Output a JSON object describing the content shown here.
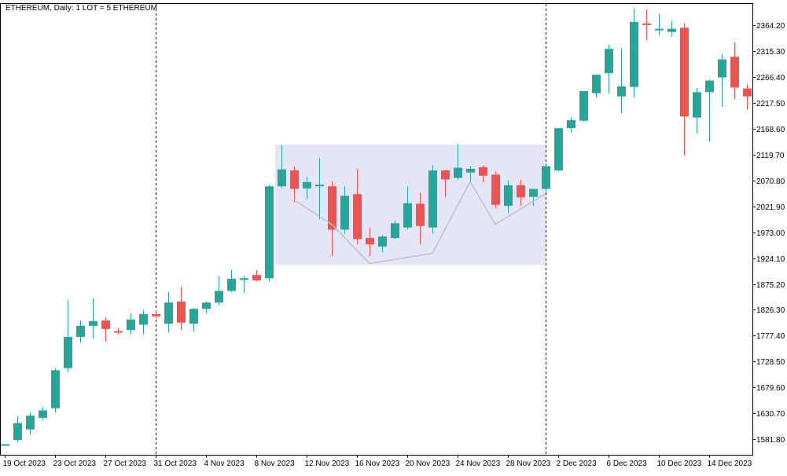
{
  "chart_data": {
    "type": "candlestick",
    "title": "ETHEREUM, Daily:  1 LOT = 5 ETHEREUM",
    "ylim": [
      1552,
      2405
    ],
    "y_ticks": [
      1581.8,
      1630.7,
      1679.6,
      1728.5,
      1777.4,
      1826.3,
      1875.2,
      1924.1,
      1973.0,
      2021.9,
      2070.8,
      2119.7,
      2168.6,
      2217.5,
      2266.4,
      2315.3,
      2364.2
    ],
    "x_tick_labels": [
      {
        "index": 0,
        "label": "19 Oct 2023"
      },
      {
        "index": 4,
        "label": "23 Oct 2023"
      },
      {
        "index": 8,
        "label": "27 Oct 2023"
      },
      {
        "index": 12,
        "label": "31 Oct 2023"
      },
      {
        "index": 16,
        "label": "4 Nov 2023"
      },
      {
        "index": 20,
        "label": "8 Nov 2023"
      },
      {
        "index": 24,
        "label": "12 Nov 2023"
      },
      {
        "index": 28,
        "label": "16 Nov 2023"
      },
      {
        "index": 32,
        "label": "20 Nov 2023"
      },
      {
        "index": 36,
        "label": "24 Nov 2023"
      },
      {
        "index": 40,
        "label": "28 Nov 2023"
      },
      {
        "index": 44,
        "label": "2 Dec 2023"
      },
      {
        "index": 48,
        "label": "6 Dec 2023"
      },
      {
        "index": 52,
        "label": "10 Dec 2023"
      },
      {
        "index": 56,
        "label": "14 Dec 2023"
      }
    ],
    "colors": {
      "bull": "#26a69a",
      "bear": "#ef5350",
      "zone": "#e4e6f7",
      "pattern_line": "#c0c0c0",
      "vline": "#000000"
    },
    "candles": [
      [
        1572,
        1572,
        1572,
        1572
      ],
      [
        1580,
        1625,
        1576,
        1612
      ],
      [
        1600,
        1632,
        1590,
        1626
      ],
      [
        1622,
        1642,
        1618,
        1636
      ],
      [
        1640,
        1716,
        1632,
        1712
      ],
      [
        1716,
        1845,
        1708,
        1775
      ],
      [
        1775,
        1806,
        1764,
        1796
      ],
      [
        1796,
        1848,
        1772,
        1805
      ],
      [
        1806,
        1812,
        1766,
        1790
      ],
      [
        1786,
        1792,
        1780,
        1783
      ],
      [
        1788,
        1820,
        1780,
        1808
      ],
      [
        1798,
        1826,
        1780,
        1818
      ],
      [
        1818,
        1826,
        1810,
        1814
      ],
      [
        1800,
        1860,
        1784,
        1840
      ],
      [
        1842,
        1870,
        1788,
        1802
      ],
      [
        1800,
        1830,
        1785,
        1828
      ],
      [
        1828,
        1842,
        1820,
        1840
      ],
      [
        1840,
        1890,
        1835,
        1862
      ],
      [
        1862,
        1902,
        1860,
        1885
      ],
      [
        1885,
        1890,
        1858,
        1886
      ],
      [
        1892,
        1902,
        1880,
        1882
      ],
      [
        1886,
        2062,
        1880,
        2060
      ],
      [
        2060,
        2138,
        2056,
        2092
      ],
      [
        2090,
        2098,
        2030,
        2055
      ],
      [
        2056,
        2078,
        2035,
        2068
      ],
      [
        2060,
        2113,
        1998,
        2063
      ],
      [
        2060,
        2070,
        1928,
        1978
      ],
      [
        1978,
        2060,
        1970,
        2042
      ],
      [
        2045,
        2093,
        1950,
        1960
      ],
      [
        1962,
        1982,
        1928,
        1950
      ],
      [
        1946,
        1968,
        1935,
        1965
      ],
      [
        1962,
        1995,
        1960,
        1990
      ],
      [
        1982,
        2060,
        1978,
        2028
      ],
      [
        2027,
        2048,
        1950,
        1985
      ],
      [
        1982,
        2100,
        1970,
        2090
      ],
      [
        2090,
        2092,
        2040,
        2073
      ],
      [
        2076,
        2140,
        2072,
        2095
      ],
      [
        2086,
        2098,
        2070,
        2093
      ],
      [
        2096,
        2100,
        2068,
        2080
      ],
      [
        2082,
        2088,
        2018,
        2025
      ],
      [
        2023,
        2071,
        2009,
        2062
      ],
      [
        2062,
        2072,
        2023,
        2039
      ],
      [
        2040,
        2050,
        2023,
        2055
      ],
      [
        2055,
        2100,
        2050,
        2098
      ],
      [
        2090,
        2168,
        2088,
        2170
      ],
      [
        2170,
        2190,
        2162,
        2185
      ],
      [
        2184,
        2240,
        2182,
        2240
      ],
      [
        2236,
        2271,
        2228,
        2271
      ],
      [
        2274,
        2328,
        2235,
        2320
      ],
      [
        2230,
        2321,
        2198,
        2249
      ],
      [
        2248,
        2397,
        2228,
        2371
      ],
      [
        2368,
        2395,
        2336,
        2366
      ],
      [
        2358,
        2386,
        2346,
        2358
      ],
      [
        2352,
        2373,
        2344,
        2358
      ],
      [
        2360,
        2368,
        2118,
        2192
      ],
      [
        2190,
        2246,
        2160,
        2238
      ],
      [
        2238,
        2262,
        2145,
        2260
      ],
      [
        2266,
        2310,
        2210,
        2300
      ],
      [
        2305,
        2332,
        2225,
        2247
      ],
      [
        2245,
        2253,
        2205,
        2230
      ]
    ],
    "zone": {
      "from_index": 22,
      "to_index": 43,
      "top": 2139,
      "bottom": 1911
    },
    "pattern_points": [
      [
        23,
        2034
      ],
      [
        26,
        1988
      ],
      [
        29,
        1914
      ],
      [
        34,
        1933
      ],
      [
        37,
        2069
      ],
      [
        39,
        1988
      ],
      [
        43,
        2046
      ]
    ],
    "vertical_lines_at_index": [
      12,
      43
    ]
  }
}
